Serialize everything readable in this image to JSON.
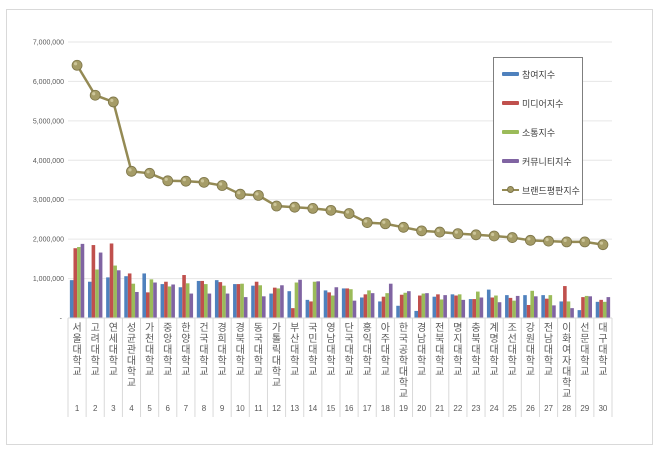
{
  "chart_data": {
    "type": "bar",
    "title": "",
    "xlabel": "",
    "ylabel": "",
    "ylim": [
      0,
      7000000
    ],
    "y_ticks": [
      "-",
      "1,000,000",
      "2,000,000",
      "3,000,000",
      "4,000,000",
      "5,000,000",
      "6,000,000",
      "7,000,000"
    ],
    "grid": true,
    "legend_position": "right-inside",
    "categories": [
      "서울대학교",
      "고려대학교",
      "연세대학교",
      "성균관대학교",
      "가천대학교",
      "중앙대학교",
      "한양대학교",
      "건국대학교",
      "경희대학교",
      "경북대학교",
      "동국대학교",
      "가톨릭대학교",
      "부산대학교",
      "국민대학교",
      "영남대학교",
      "단국대학교",
      "홍익대학교",
      "아주대학교",
      "한국공학대학교",
      "경남대학교",
      "전북대학교",
      "명지대학교",
      "충북대학교",
      "계명대학교",
      "조선대학교",
      "강원대학교",
      "전남대학교",
      "이화여자대학교",
      "선문대학교",
      "대구대학교"
    ],
    "ranks": [
      "1",
      "2",
      "3",
      "4",
      "5",
      "6",
      "7",
      "8",
      "9",
      "10",
      "11",
      "12",
      "13",
      "14",
      "15",
      "16",
      "17",
      "18",
      "19",
      "20",
      "21",
      "22",
      "23",
      "24",
      "25",
      "26",
      "27",
      "28",
      "29",
      "30"
    ],
    "series": [
      {
        "name": "참여지수",
        "kind": "bar",
        "color": "#4f81bd",
        "values": [
          960000,
          920000,
          1030000,
          1060000,
          1130000,
          860000,
          780000,
          940000,
          960000,
          860000,
          820000,
          620000,
          680000,
          460000,
          700000,
          750000,
          520000,
          420000,
          310000,
          180000,
          540000,
          600000,
          480000,
          720000,
          580000,
          580000,
          580000,
          420000,
          200000,
          410000
        ]
      },
      {
        "name": "미디어지수",
        "kind": "bar",
        "color": "#c0504d",
        "values": [
          1770000,
          1850000,
          1890000,
          1130000,
          650000,
          920000,
          1090000,
          940000,
          910000,
          860000,
          920000,
          770000,
          250000,
          420000,
          650000,
          750000,
          600000,
          540000,
          590000,
          570000,
          600000,
          570000,
          480000,
          520000,
          510000,
          330000,
          490000,
          810000,
          530000,
          460000
        ]
      },
      {
        "name": "소통지수",
        "kind": "bar",
        "color": "#9bbb59",
        "values": [
          1800000,
          1230000,
          1330000,
          870000,
          980000,
          800000,
          880000,
          860000,
          820000,
          870000,
          830000,
          750000,
          900000,
          920000,
          570000,
          730000,
          700000,
          630000,
          640000,
          620000,
          470000,
          600000,
          670000,
          570000,
          440000,
          690000,
          580000,
          420000,
          560000,
          410000
        ]
      },
      {
        "name": "커뮤니티지수",
        "kind": "bar",
        "color": "#8064a2",
        "values": [
          1880000,
          1660000,
          1210000,
          660000,
          900000,
          850000,
          620000,
          620000,
          620000,
          530000,
          550000,
          830000,
          970000,
          930000,
          780000,
          440000,
          630000,
          870000,
          680000,
          630000,
          580000,
          460000,
          520000,
          400000,
          560000,
          550000,
          320000,
          250000,
          550000,
          530000
        ]
      },
      {
        "name": "브랜드평판지수",
        "kind": "line",
        "color": "#948a54",
        "values": [
          6410000,
          5650000,
          5480000,
          3720000,
          3670000,
          3480000,
          3470000,
          3440000,
          3360000,
          3140000,
          3110000,
          2840000,
          2810000,
          2780000,
          2730000,
          2650000,
          2420000,
          2390000,
          2300000,
          2210000,
          2180000,
          2140000,
          2110000,
          2080000,
          2040000,
          1970000,
          1950000,
          1930000,
          1930000,
          1860000
        ]
      }
    ]
  },
  "legend": {
    "items": [
      "참여지수",
      "미디어지수",
      "소통지수",
      "커뮤니티지수",
      "브랜드평판지수"
    ]
  }
}
